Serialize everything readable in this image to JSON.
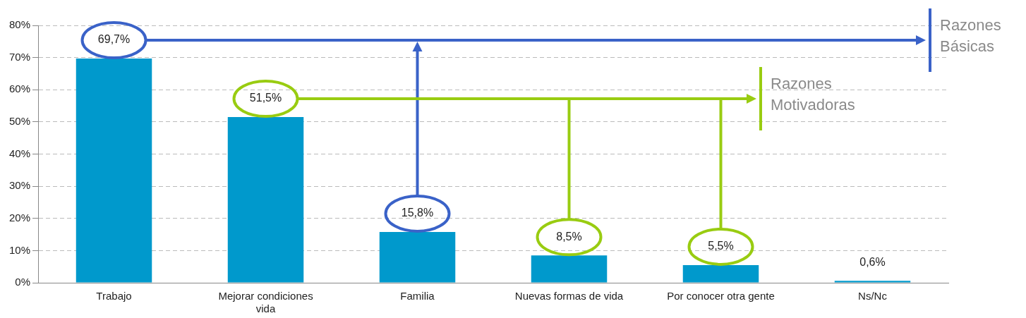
{
  "chart_data": {
    "type": "bar",
    "categories": [
      "Trabajo",
      "Mejorar condiciones vida",
      "Familia",
      "Nuevas formas de vida",
      "Por conocer otra gente",
      "Ns/Nc"
    ],
    "values": [
      69.7,
      51.5,
      15.8,
      8.5,
      5.5,
      0.6
    ],
    "value_labels": [
      "69,7%",
      "51,5%",
      "15,8%",
      "8,5%",
      "5,5%",
      "0,6%"
    ],
    "color": "#0099cc",
    "ylim": [
      0,
      80
    ],
    "yticks": [
      {
        "value": 0,
        "label": "0%"
      },
      {
        "value": 10,
        "label": "10%"
      },
      {
        "value": 20,
        "label": "20%"
      },
      {
        "value": 30,
        "label": "30%"
      },
      {
        "value": 40,
        "label": "40%"
      },
      {
        "value": 50,
        "label": "50%"
      },
      {
        "value": 60,
        "label": "60%"
      },
      {
        "value": 70,
        "label": "70%"
      },
      {
        "value": 80,
        "label": "80%"
      }
    ],
    "grid": "y",
    "legend": false,
    "annotations": [
      "Razones Básicas",
      "Razones Motivadoras"
    ]
  }
}
